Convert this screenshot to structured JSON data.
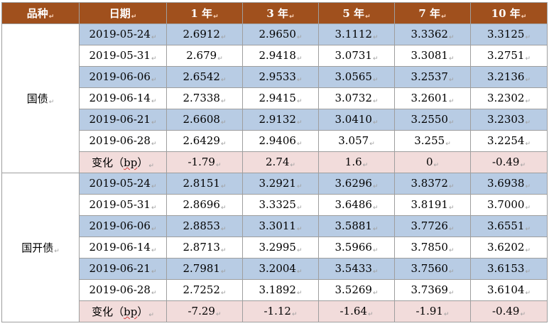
{
  "header": [
    "品种",
    "日期",
    "1 年",
    "3 年",
    "5 年",
    "7 年",
    "10 年"
  ],
  "change_label": {
    "prefix": "变化（",
    "unit": "bp",
    "suffix": "）"
  },
  "groups": [
    {
      "name": "国债",
      "rows": [
        {
          "date": "2019-05-24",
          "values": [
            "2.6912",
            "2.9650",
            "3.1112",
            "3.3362",
            "3.3125"
          ]
        },
        {
          "date": "2019-05-31",
          "values": [
            "2.679",
            "2.9418",
            "3.0731",
            "3.3081",
            "3.2751"
          ]
        },
        {
          "date": "2019-06-06",
          "values": [
            "2.6542",
            "2.9533",
            "3.0565",
            "3.2537",
            "3.2136"
          ]
        },
        {
          "date": "2019-06-14",
          "values": [
            "2.7338",
            "2.9415",
            "3.0732",
            "3.2601",
            "3.2302"
          ]
        },
        {
          "date": "2019-06-21",
          "values": [
            "2.6608",
            "2.9132",
            "3.0410",
            "3.2550",
            "3.2303"
          ]
        },
        {
          "date": "2019-06-28",
          "values": [
            "2.6429",
            "2.9406",
            "3.057",
            "3.255",
            "3.2254"
          ]
        }
      ],
      "change": [
        "-1.79",
        "2.74",
        "1.6",
        "0",
        "-0.49"
      ]
    },
    {
      "name": "国开债",
      "rows": [
        {
          "date": "2019-05-24",
          "values": [
            "2.8151",
            "3.2921",
            "3.6296",
            "3.8372",
            "3.6938"
          ]
        },
        {
          "date": "2019-05-31",
          "values": [
            "2.8696",
            "3.3325",
            "3.6486",
            "3.8191",
            "3.7000"
          ]
        },
        {
          "date": "2019-06-06",
          "values": [
            "2.8853",
            "3.3011",
            "3.5881",
            "3.7726",
            "3.6551"
          ]
        },
        {
          "date": "2019-06-14",
          "values": [
            "2.8713",
            "3.2995",
            "3.5966",
            "3.7850",
            "3.6202"
          ]
        },
        {
          "date": "2019-06-21",
          "values": [
            "2.7981",
            "3.2004",
            "3.5433",
            "3.7560",
            "3.6153"
          ]
        },
        {
          "date": "2019-06-28",
          "values": [
            "2.7252",
            "3.1892",
            "3.5269",
            "3.7369",
            "3.6104"
          ]
        }
      ],
      "change": [
        "-7.29",
        "-1.12",
        "-1.64",
        "-1.91",
        "-0.49"
      ]
    }
  ]
}
